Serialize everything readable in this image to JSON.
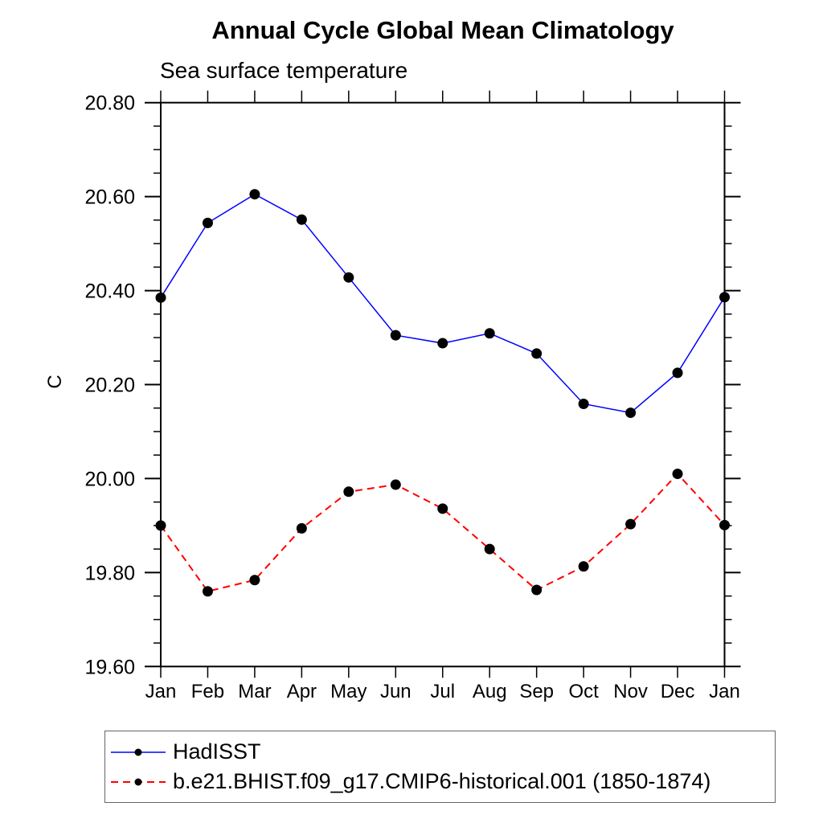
{
  "chart_data": {
    "type": "line",
    "title": "Annual Cycle Global Mean Climatology",
    "subtitle": "Sea surface temperature",
    "ylabel": "C",
    "categories": [
      "Jan",
      "Feb",
      "Mar",
      "Apr",
      "May",
      "Jun",
      "Jul",
      "Aug",
      "Sep",
      "Oct",
      "Nov",
      "Dec",
      "Jan"
    ],
    "ylim": [
      19.6,
      20.8
    ],
    "y_major_step": 0.2,
    "y_minor_step": 0.05,
    "ytick_labels": [
      "19.60",
      "19.80",
      "20.00",
      "20.20",
      "20.40",
      "20.60",
      "20.80"
    ],
    "grid": "off",
    "legend_position": "bottom-left",
    "marker": {
      "shape": "filled-circle",
      "color": "#000000"
    },
    "series": [
      {
        "name": "HadISST",
        "color": "#0000ff",
        "line_style": "solid",
        "dash": "none",
        "values": [
          20.385,
          20.544,
          20.605,
          20.551,
          20.428,
          20.305,
          20.288,
          20.309,
          20.266,
          20.159,
          20.14,
          20.225,
          20.386
        ]
      },
      {
        "name": "b.e21.BHIST.f09_g17.CMIP6-historical.001 (1850-1874)",
        "color": "#ff0000",
        "line_style": "dashed",
        "dash": "9 6",
        "values": [
          19.9,
          19.76,
          19.784,
          19.894,
          19.972,
          19.987,
          19.936,
          19.85,
          19.763,
          19.813,
          19.903,
          20.01,
          19.901
        ]
      }
    ]
  }
}
